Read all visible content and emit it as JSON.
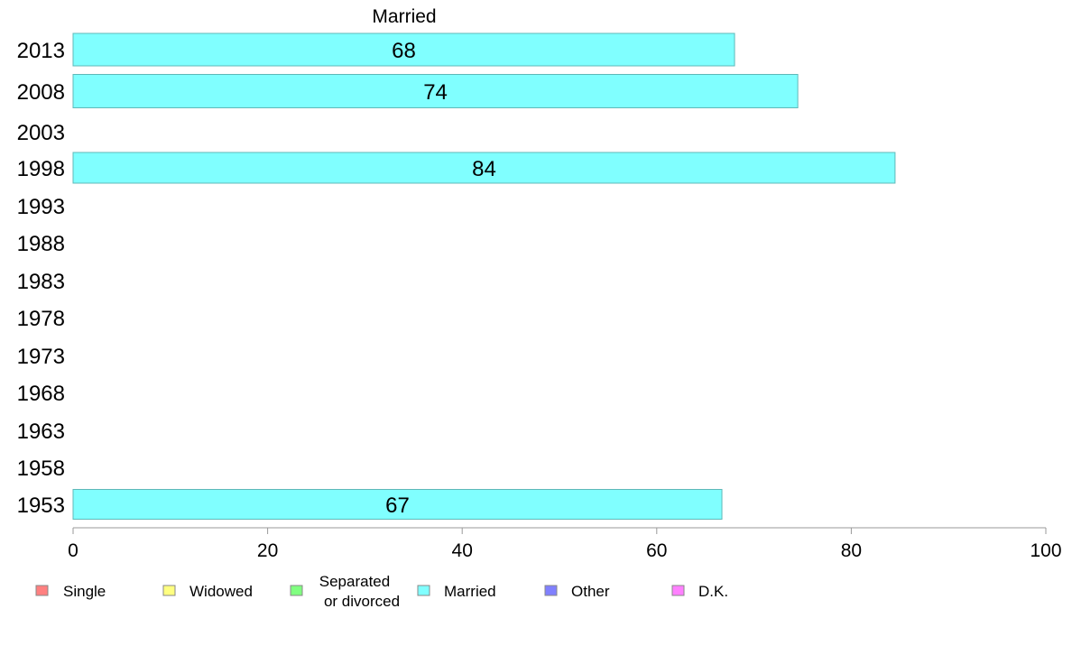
{
  "chart_data": {
    "type": "bar",
    "orientation": "horizontal",
    "title": "Married",
    "categories": [
      "2013",
      "2008",
      "2003",
      "1998",
      "1993",
      "1988",
      "1983",
      "1978",
      "1973",
      "1968",
      "1963",
      "1958",
      "1953"
    ],
    "series": [
      {
        "name": "Married",
        "values": [
          68,
          74,
          null,
          84,
          null,
          null,
          null,
          null,
          null,
          null,
          null,
          null,
          67
        ],
        "exact_values": [
          68.0,
          74.5,
          null,
          84.5,
          null,
          null,
          null,
          null,
          null,
          null,
          null,
          null,
          66.7
        ],
        "color": "#80ffff"
      }
    ],
    "xlim": [
      0,
      100
    ],
    "xticks": [
      0,
      20,
      40,
      60,
      80,
      100
    ],
    "xlabel": "",
    "ylabel": "",
    "grid": false,
    "legend": {
      "placement": "bottom",
      "items": [
        {
          "label": "Single",
          "color": "#ff8080"
        },
        {
          "label": "Widowed",
          "color": "#ffff80"
        },
        {
          "label": "Separated\nor divorced",
          "color": "#80ff80"
        },
        {
          "label": "Married",
          "color": "#80ffff"
        },
        {
          "label": "Other",
          "color": "#8080ff"
        },
        {
          "label": "D.K.",
          "color": "#ff80ff"
        }
      ]
    },
    "bar_border_color": "#5fb8b8",
    "axis_color": "#999999"
  }
}
